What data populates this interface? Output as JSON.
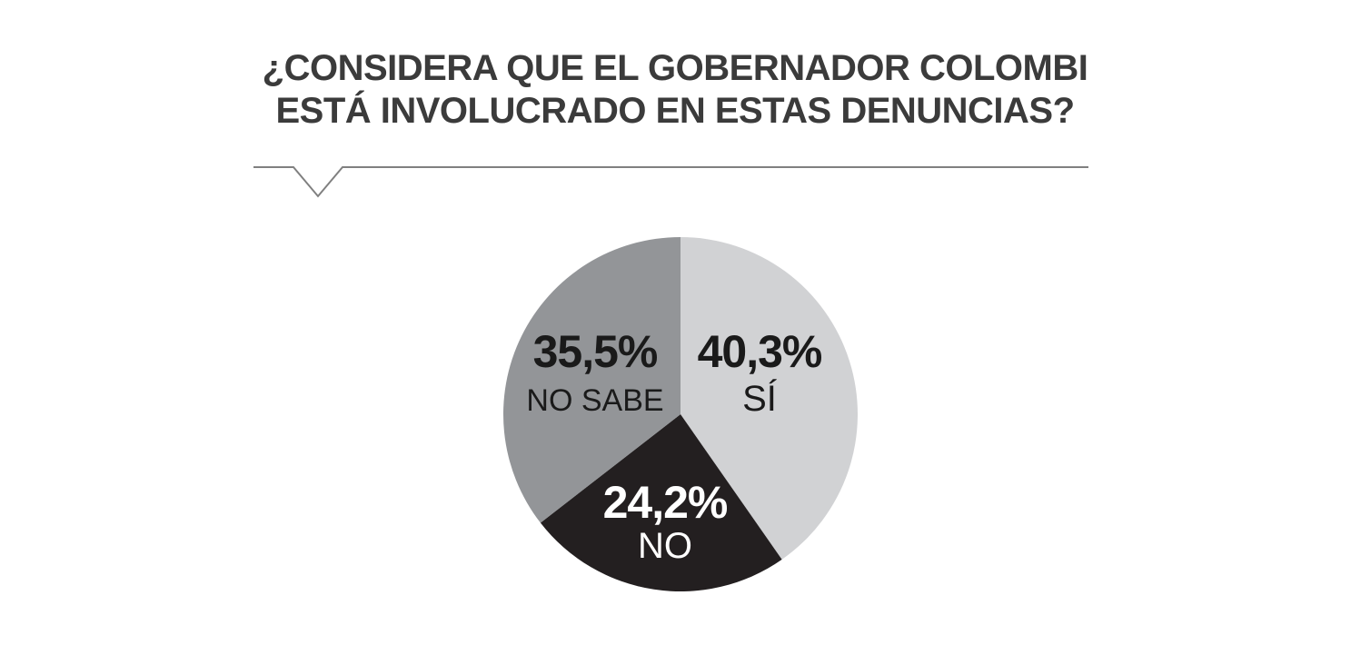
{
  "chart_data": {
    "type": "pie",
    "title_lines": [
      "¿CONSIDERA QUE EL GOBERNADOR COLOMBI",
      "ESTÁ INVOLUCRADO EN ESTAS DENUNCIAS?"
    ],
    "slices": [
      {
        "label": "SÍ",
        "value": 40.3,
        "value_text": "40,3%",
        "color": "#d1d2d4",
        "text_color": "#1a1a1a"
      },
      {
        "label": "NO",
        "value": 24.2,
        "value_text": "24,2%",
        "color": "#231f20",
        "text_color": "#ffffff"
      },
      {
        "label": "NO SABE",
        "value": 35.5,
        "value_text": "35,5%",
        "color": "#939598",
        "text_color": "#1a1a1a"
      }
    ],
    "start_angle_deg": 0,
    "direction": "clockwise"
  },
  "colors": {
    "title": "#3b3b3b",
    "divider": "#808080",
    "background": "#ffffff"
  }
}
